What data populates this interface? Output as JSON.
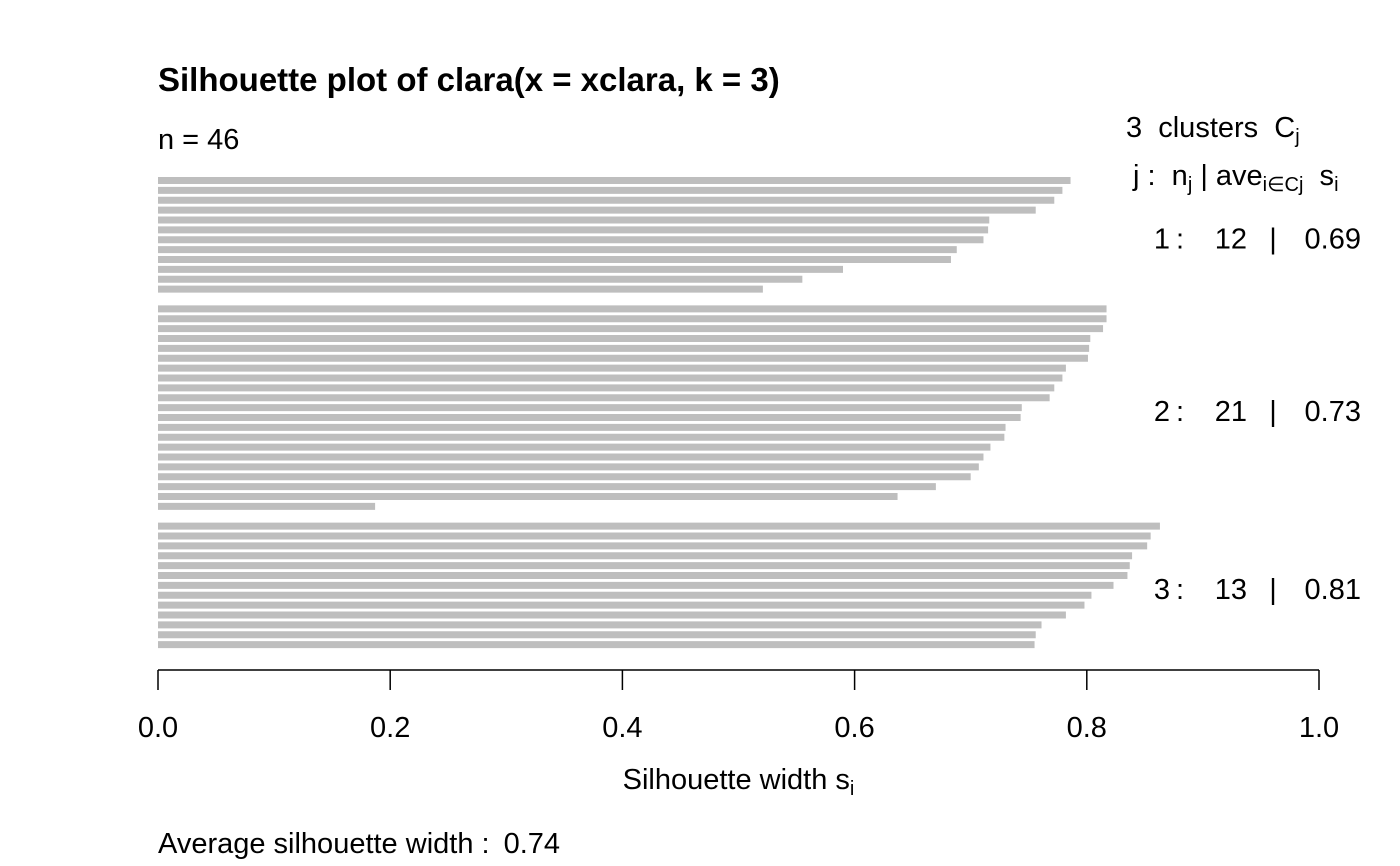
{
  "chart_data": {
    "type": "silhouette",
    "title": "Silhouette plot of clara(x = xclara, k = 3)",
    "subtitle": "n = 46",
    "xlabel": [
      {
        "text": "Silhouette width s",
        "sub": false
      },
      {
        "text": "i",
        "sub": true
      }
    ],
    "footer": "Average silhouette width :",
    "average": 0.74,
    "xlim": [
      0,
      1
    ],
    "xticks": [
      {
        "value": 0,
        "label": "0.0"
      },
      0.2,
      0.4,
      0.6,
      0.8,
      {
        "value": 1,
        "label": "1.0"
      }
    ],
    "color": "#bebebe",
    "legend_header": [
      [
        {
          "text": "3  clusters  C",
          "sub": false
        },
        {
          "text": "j",
          "sub": true
        }
      ],
      [
        {
          "text": "j :  n",
          "sub": false
        },
        {
          "text": "j",
          "sub": true
        },
        {
          "text": " | ave",
          "sub": false
        },
        {
          "text": "i∈Cj",
          "sub": true
        },
        {
          "text": "  s",
          "sub": false
        },
        {
          "text": "i",
          "sub": true
        }
      ]
    ],
    "separators": [
      ":",
      "|"
    ],
    "series": [
      {
        "name": 1,
        "n": 12,
        "ave": 0.69,
        "values": [
          0.786,
          0.779,
          0.772,
          0.756,
          0.716,
          0.715,
          0.711,
          0.688,
          0.683,
          0.59,
          0.555,
          0.521
        ]
      },
      {
        "name": 2,
        "n": 21,
        "ave": 0.73,
        "values": [
          0.817,
          0.817,
          0.814,
          0.803,
          0.802,
          0.801,
          0.782,
          0.779,
          0.772,
          0.768,
          0.744,
          0.743,
          0.73,
          0.729,
          0.717,
          0.711,
          0.707,
          0.7,
          0.67,
          0.637,
          0.187
        ]
      },
      {
        "name": 3,
        "n": 13,
        "ave": 0.81,
        "values": [
          0.863,
          0.855,
          0.852,
          0.839,
          0.837,
          0.835,
          0.823,
          0.804,
          0.798,
          0.782,
          0.761,
          0.756,
          0.755
        ]
      }
    ]
  }
}
